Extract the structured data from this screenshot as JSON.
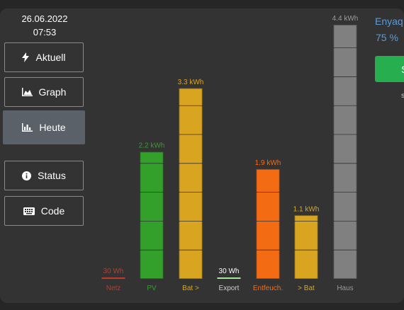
{
  "header": {
    "date": "26.06.2022",
    "time": "07:53"
  },
  "nav": [
    {
      "id": "aktuell",
      "label": "Aktuell",
      "icon": "bolt-icon",
      "active": false
    },
    {
      "id": "graph",
      "label": "Graph",
      "icon": "area-chart-icon",
      "active": false
    },
    {
      "id": "heute",
      "label": "Heute",
      "icon": "bar-chart-icon",
      "active": true
    },
    {
      "id": "status",
      "label": "Status",
      "icon": "info-icon",
      "active": false
    },
    {
      "id": "code",
      "label": "Code",
      "icon": "keyboard-icon",
      "active": false
    }
  ],
  "side": {
    "title": "Enyaq",
    "percent": "75 %",
    "button_label": "S",
    "small": "s"
  },
  "colors": {
    "netz": "#c0392b",
    "pv": "#33a02c",
    "bat": "#d9a521",
    "export": "#a8e6a0",
    "entfeuch": "#f36c14",
    "haus": "#808080"
  },
  "chart_data": {
    "type": "bar",
    "unit": "kWh",
    "categories": [
      "Netz",
      "PV",
      "Bat >",
      "Export",
      "Entfeuch.",
      "> Bat",
      "Haus"
    ],
    "values": [
      0.03,
      2.2,
      3.3,
      0.03,
      1.9,
      1.1,
      4.4
    ],
    "data_labels": [
      "30 Wh",
      "2.2 kWh",
      "3.3 kWh",
      "30 Wh",
      "1.9 kWh",
      "1.1 kWh",
      "4.4 kWh"
    ],
    "ylim": [
      0,
      4.4
    ],
    "grid_step": 0.5
  }
}
